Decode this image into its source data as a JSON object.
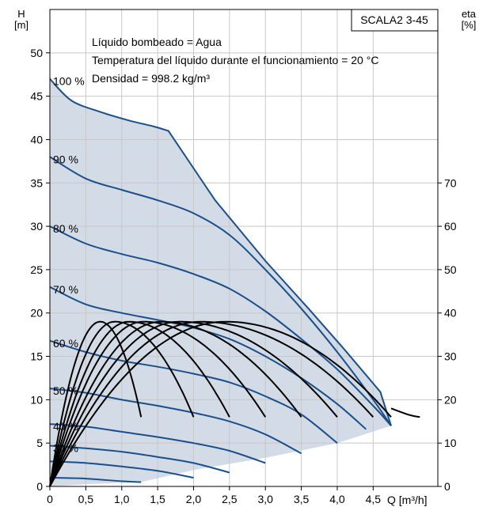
{
  "chart_data": {
    "type": "line",
    "model": "SCALA2 3-45",
    "notes": [
      "Líquido bombeado = Agua",
      "Temperatura del líquido durante el funcionamiento = 20 °C",
      "Densidad = 998.2 kg/m³"
    ],
    "y_axis": {
      "label": "H",
      "unit": "[m]",
      "range": [
        0,
        55
      ],
      "ticks": [
        0,
        5,
        10,
        15,
        20,
        25,
        30,
        35,
        40,
        45,
        50
      ]
    },
    "y2_axis": {
      "label": "eta",
      "unit": "[%]",
      "range": [
        0,
        110
      ],
      "ticks": [
        0,
        10,
        20,
        30,
        40,
        50,
        60,
        70
      ]
    },
    "x_axis": {
      "label": "Q [m³/h]",
      "range": [
        0,
        5.4
      ],
      "ticks": [
        "0",
        "0,5",
        "1,0",
        "1,5",
        "2,0",
        "2,5",
        "3,0",
        "3,5",
        "4,0",
        "4,5"
      ]
    },
    "grid": true,
    "colors": {
      "head": "#1a4f8a",
      "efficiency": "#000000",
      "envelope": "#d3dbe6",
      "grid": "#c8c8c8"
    },
    "envelope": {
      "x": [
        0,
        0.3,
        0.7,
        1.1,
        1.45,
        1.65,
        2.3,
        3.0,
        3.6,
        4.1,
        4.6,
        4.75,
        4.0,
        3.0,
        2.0,
        1.27,
        0.6,
        0
      ],
      "y": [
        47,
        44.5,
        43.2,
        42.2,
        41.5,
        41,
        33,
        26,
        20.5,
        15.8,
        10.9,
        7.0,
        5.0,
        3.3,
        1.9,
        0.5,
        0.3,
        0
      ]
    },
    "head_series": [
      {
        "name": "100 %",
        "x": [
          0,
          0.3,
          0.7,
          1.1,
          1.45,
          1.65,
          2.3,
          3.0,
          3.6,
          4.1,
          4.6,
          4.75
        ],
        "y": [
          47,
          44.5,
          43.2,
          42.2,
          41.5,
          41,
          33,
          26,
          20.5,
          15.8,
          10.9,
          7.0
        ]
      },
      {
        "name": "90 %",
        "x": [
          0,
          0.5,
          1.0,
          1.5,
          2.0,
          2.5,
          3.0,
          3.5,
          4.0,
          4.5,
          4.75
        ],
        "y": [
          38,
          35.5,
          34.2,
          33,
          31.5,
          29,
          25,
          20.5,
          15.5,
          10,
          7.0
        ]
      },
      {
        "name": "80 %",
        "x": [
          0,
          0.5,
          1.0,
          1.5,
          2.0,
          2.5,
          3.0,
          3.5,
          4.0,
          4.5,
          4.75
        ],
        "y": [
          30,
          28,
          26.8,
          25.8,
          24.5,
          22.8,
          20.2,
          17,
          13.5,
          9.3,
          7.0
        ]
      },
      {
        "name": "70 %",
        "x": [
          0,
          0.5,
          1.0,
          1.5,
          2.0,
          2.5,
          3.0,
          3.5,
          4.0,
          4.4
        ],
        "y": [
          23,
          21,
          20,
          19.2,
          18.3,
          17,
          15,
          12.5,
          9.5,
          6.6
        ]
      },
      {
        "name": "60 %",
        "x": [
          0,
          0.5,
          1.0,
          1.5,
          2.0,
          2.5,
          3.0,
          3.5,
          4.0
        ],
        "y": [
          16.8,
          15.5,
          14.5,
          13.8,
          13,
          12,
          10.4,
          8.3,
          5.0
        ]
      },
      {
        "name": "50 %",
        "x": [
          0,
          0.5,
          1.0,
          1.5,
          2.0,
          2.5,
          3.0,
          3.5
        ],
        "y": [
          11.3,
          10.8,
          10,
          9.3,
          8.5,
          7.5,
          6.0,
          3.8
        ]
      },
      {
        "name": "40 %",
        "x": [
          0,
          0.5,
          1.0,
          1.5,
          2.0,
          2.5,
          3.0
        ],
        "y": [
          7.2,
          6.9,
          6.3,
          5.7,
          5.0,
          4.1,
          2.7
        ]
      },
      {
        "name": "30 %",
        "x": [
          0,
          0.5,
          1.0,
          1.5,
          2.0,
          2.5
        ],
        "y": [
          4.7,
          4.4,
          4.0,
          3.4,
          2.7,
          1.6
        ]
      },
      {
        "name": "",
        "x": [
          0,
          0.5,
          1.0,
          1.5,
          2.0
        ],
        "y": [
          2.9,
          2.7,
          2.3,
          1.8,
          1.0
        ]
      },
      {
        "name": "",
        "x": [
          0,
          0.5,
          1.0,
          1.27
        ],
        "y": [
          1.0,
          0.9,
          0.6,
          0.5
        ]
      }
    ],
    "efficiency_series": [
      {
        "qmax": 1.27,
        "peak_q": 0.7,
        "peak_eta": 38,
        "end_eta": 16
      },
      {
        "qmax": 2.0,
        "peak_q": 0.9,
        "peak_eta": 38,
        "end_eta": 16
      },
      {
        "qmax": 2.5,
        "peak_q": 1.1,
        "peak_eta": 38,
        "end_eta": 16
      },
      {
        "qmax": 3.0,
        "peak_q": 1.3,
        "peak_eta": 38,
        "end_eta": 16
      },
      {
        "qmax": 3.5,
        "peak_q": 1.55,
        "peak_eta": 38,
        "end_eta": 16
      },
      {
        "qmax": 4.0,
        "peak_q": 1.8,
        "peak_eta": 38,
        "end_eta": 16
      },
      {
        "qmax": 4.5,
        "peak_q": 2.1,
        "peak_eta": 38,
        "end_eta": 16
      },
      {
        "qmax": 4.75,
        "peak_q": 2.45,
        "peak_eta": 38,
        "end_eta": 16
      }
    ],
    "eta_envelope": {
      "q": [
        4.75,
        5.0,
        5.15
      ],
      "eta": [
        18,
        16.5,
        16
      ]
    }
  }
}
